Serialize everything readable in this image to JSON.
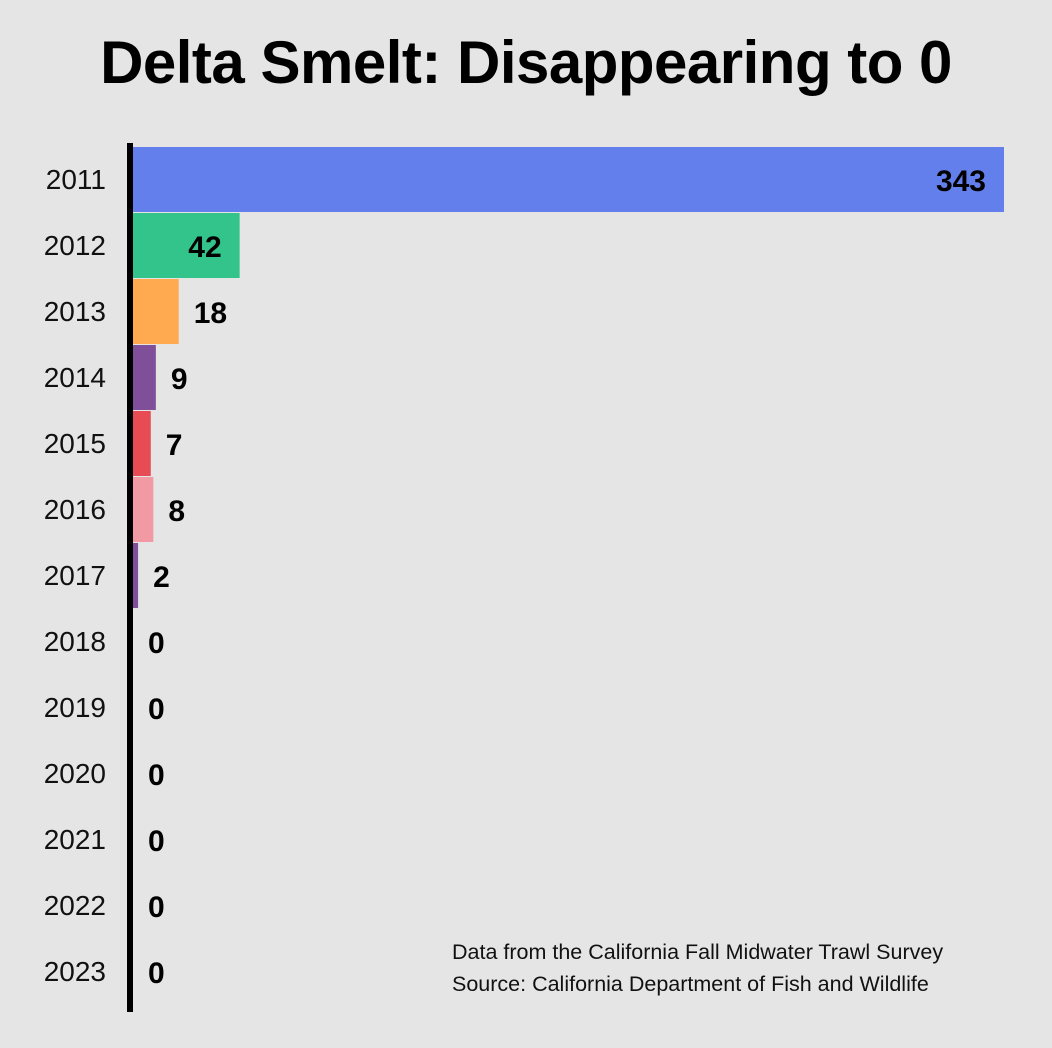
{
  "chart_data": {
    "type": "bar",
    "orientation": "horizontal",
    "title": "Delta Smelt: Disappearing to 0",
    "categories": [
      "2011",
      "2012",
      "2013",
      "2014",
      "2015",
      "2016",
      "2017",
      "2018",
      "2019",
      "2020",
      "2021",
      "2022",
      "2023"
    ],
    "values": [
      343,
      42,
      18,
      9,
      7,
      8,
      2,
      0,
      0,
      0,
      0,
      0,
      0
    ],
    "colors": [
      "#627fec",
      "#33c48c",
      "#ffaa50",
      "#7f4f9a",
      "#e74c55",
      "#f29aa3",
      "#7f4f9a",
      "#000000",
      "#000000",
      "#000000",
      "#000000",
      "#000000",
      "#000000"
    ],
    "xlim": [
      0,
      343
    ],
    "xlabel": "",
    "ylabel": "",
    "grid": false,
    "legend": "none"
  },
  "footer": {
    "line1": "Data from the California Fall Midwater Trawl Survey",
    "line2": "Source: California Department of Fish and Wildlife"
  },
  "colors": {
    "background": "#e5e5e5",
    "axis": "#000000"
  }
}
